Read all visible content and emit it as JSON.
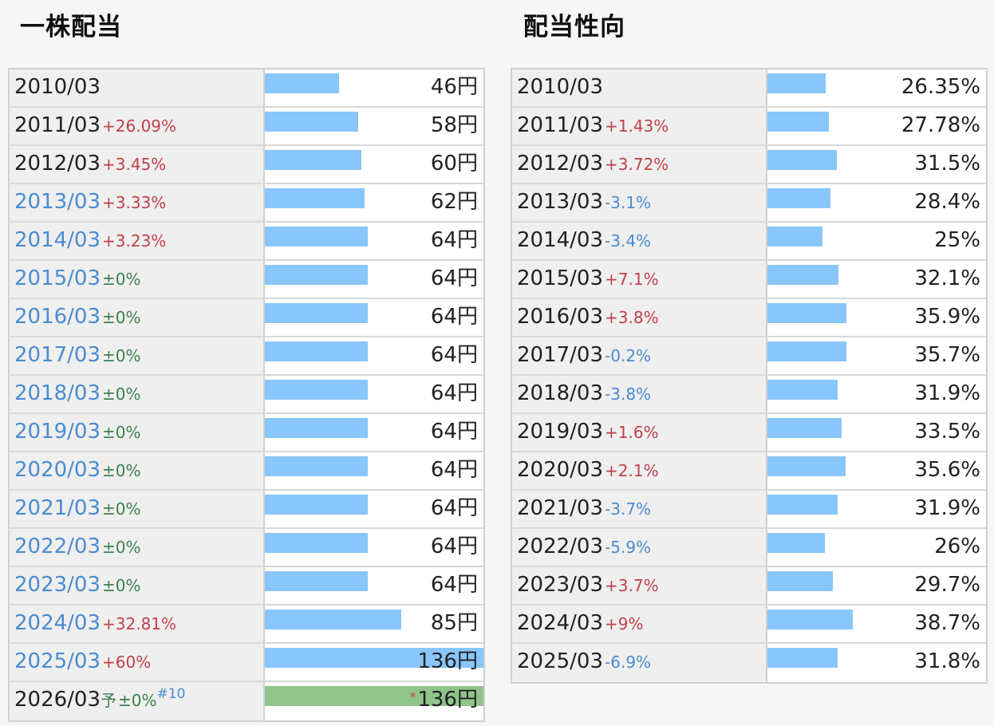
{
  "dividend": {
    "title": "一株配当",
    "unit": "円",
    "rows": [
      {
        "year": "2010/03",
        "change": "",
        "sign": "",
        "value": 46,
        "link": false
      },
      {
        "year": "2011/03",
        "change": "+26.09%",
        "sign": "pos",
        "value": 58,
        "link": false
      },
      {
        "year": "2012/03",
        "change": "+3.45%",
        "sign": "pos",
        "value": 60,
        "link": false
      },
      {
        "year": "2013/03",
        "change": "+3.33%",
        "sign": "pos",
        "value": 62,
        "link": true
      },
      {
        "year": "2014/03",
        "change": "+3.23%",
        "sign": "pos",
        "value": 64,
        "link": true
      },
      {
        "year": "2015/03",
        "change": "±0%",
        "sign": "zero",
        "value": 64,
        "link": true
      },
      {
        "year": "2016/03",
        "change": "±0%",
        "sign": "zero",
        "value": 64,
        "link": true
      },
      {
        "year": "2017/03",
        "change": "±0%",
        "sign": "zero",
        "value": 64,
        "link": true
      },
      {
        "year": "2018/03",
        "change": "±0%",
        "sign": "zero",
        "value": 64,
        "link": true
      },
      {
        "year": "2019/03",
        "change": "±0%",
        "sign": "zero",
        "value": 64,
        "link": true
      },
      {
        "year": "2020/03",
        "change": "±0%",
        "sign": "zero",
        "value": 64,
        "link": true
      },
      {
        "year": "2021/03",
        "change": "±0%",
        "sign": "zero",
        "value": 64,
        "link": true
      },
      {
        "year": "2022/03",
        "change": "±0%",
        "sign": "zero",
        "value": 64,
        "link": true
      },
      {
        "year": "2023/03",
        "change": "±0%",
        "sign": "zero",
        "value": 64,
        "link": true
      },
      {
        "year": "2024/03",
        "change": "+32.81%",
        "sign": "pos",
        "value": 85,
        "link": true
      },
      {
        "year": "2025/03",
        "change": "+60%",
        "sign": "pos",
        "value": 136,
        "link": true
      },
      {
        "year": "2026/03",
        "predict_mark": "予",
        "change": "±0%",
        "sign": "zero",
        "note": "#10",
        "star": "*",
        "value": 136,
        "link": false,
        "forecast": true
      }
    ]
  },
  "payout": {
    "title": "配当性向",
    "unit": "%",
    "rows": [
      {
        "year": "2010/03",
        "change": "",
        "sign": "",
        "value": 26.35
      },
      {
        "year": "2011/03",
        "change": "+1.43%",
        "sign": "pos",
        "value": 27.78
      },
      {
        "year": "2012/03",
        "change": "+3.72%",
        "sign": "pos",
        "value": 31.5
      },
      {
        "year": "2013/03",
        "change": "-3.1%",
        "sign": "neg",
        "value": 28.4
      },
      {
        "year": "2014/03",
        "change": "-3.4%",
        "sign": "neg",
        "value": 25
      },
      {
        "year": "2015/03",
        "change": "+7.1%",
        "sign": "pos",
        "value": 32.1
      },
      {
        "year": "2016/03",
        "change": "+3.8%",
        "sign": "pos",
        "value": 35.9
      },
      {
        "year": "2017/03",
        "change": "-0.2%",
        "sign": "neg",
        "value": 35.7
      },
      {
        "year": "2018/03",
        "change": "-3.8%",
        "sign": "neg",
        "value": 31.9
      },
      {
        "year": "2019/03",
        "change": "+1.6%",
        "sign": "pos",
        "value": 33.5
      },
      {
        "year": "2020/03",
        "change": "+2.1%",
        "sign": "pos",
        "value": 35.6
      },
      {
        "year": "2021/03",
        "change": "-3.7%",
        "sign": "neg",
        "value": 31.9
      },
      {
        "year": "2022/03",
        "change": "-5.9%",
        "sign": "neg",
        "value": 26
      },
      {
        "year": "2023/03",
        "change": "+3.7%",
        "sign": "pos",
        "value": 29.7
      },
      {
        "year": "2024/03",
        "change": "+9%",
        "sign": "pos",
        "value": 38.7
      },
      {
        "year": "2025/03",
        "change": "-6.9%",
        "sign": "neg",
        "value": 31.8
      }
    ]
  },
  "chart_data": [
    {
      "type": "bar",
      "title": "一株配当",
      "categories": [
        "2010/03",
        "2011/03",
        "2012/03",
        "2013/03",
        "2014/03",
        "2015/03",
        "2016/03",
        "2017/03",
        "2018/03",
        "2019/03",
        "2020/03",
        "2021/03",
        "2022/03",
        "2023/03",
        "2024/03",
        "2025/03",
        "2026/03"
      ],
      "values": [
        46,
        58,
        60,
        62,
        64,
        64,
        64,
        64,
        64,
        64,
        64,
        64,
        64,
        64,
        85,
        136,
        136
      ],
      "ylabel": "円",
      "colors": {
        "bar": "#88c6fb",
        "forecast": "#90c58a"
      }
    },
    {
      "type": "bar",
      "title": "配当性向",
      "categories": [
        "2010/03",
        "2011/03",
        "2012/03",
        "2013/03",
        "2014/03",
        "2015/03",
        "2016/03",
        "2017/03",
        "2018/03",
        "2019/03",
        "2020/03",
        "2021/03",
        "2022/03",
        "2023/03",
        "2024/03",
        "2025/03"
      ],
      "values": [
        26.35,
        27.78,
        31.5,
        28.4,
        25,
        32.1,
        35.9,
        35.7,
        31.9,
        33.5,
        35.6,
        31.9,
        26,
        29.7,
        38.7,
        31.8
      ],
      "ylabel": "%",
      "colors": {
        "bar": "#88c6fb"
      }
    }
  ]
}
